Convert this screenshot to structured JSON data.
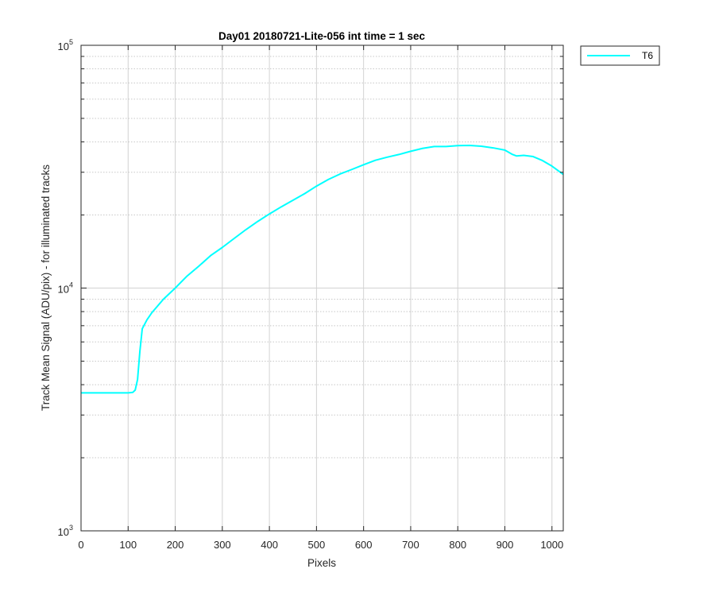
{
  "chart_data": {
    "type": "line",
    "title": "Day01 20180721-Lite-056 int time = 1 sec",
    "xlabel": "Pixels",
    "ylabel": "Track Mean Signal (ADU/pix) - for illuminated tracks",
    "xlim": [
      0,
      1024
    ],
    "ylim": [
      1000,
      100000
    ],
    "yscale": "log",
    "grid": true,
    "minor_grid": true,
    "legend_position": "outside-top-right",
    "x_ticks": [
      "0",
      "100",
      "200",
      "300",
      "400",
      "500",
      "600",
      "700",
      "800",
      "900",
      "1000"
    ],
    "y_ticks": [
      {
        "base": "10",
        "exp": "3"
      },
      {
        "base": "10",
        "exp": "4"
      },
      {
        "base": "10",
        "exp": "5"
      }
    ],
    "series": [
      {
        "name": "T6",
        "color": "#00ffff",
        "x": [
          0,
          50,
          100,
          110,
          115,
          120,
          125,
          130,
          140,
          150,
          175,
          200,
          225,
          250,
          275,
          300,
          325,
          350,
          375,
          400,
          425,
          450,
          475,
          500,
          525,
          550,
          575,
          600,
          625,
          650,
          675,
          700,
          725,
          750,
          775,
          800,
          825,
          850,
          875,
          900,
          915,
          925,
          940,
          960,
          980,
          1000,
          1024
        ],
        "values": [
          3700,
          3700,
          3700,
          3720,
          3800,
          4200,
          5500,
          6800,
          7400,
          7900,
          9000,
          10000,
          11200,
          12300,
          13600,
          14700,
          16000,
          17400,
          18800,
          20200,
          21600,
          23000,
          24500,
          26300,
          28000,
          29500,
          30800,
          32200,
          33600,
          34600,
          35500,
          36600,
          37600,
          38300,
          38300,
          38600,
          38700,
          38400,
          37800,
          37000,
          35600,
          35000,
          35200,
          34800,
          33500,
          31800,
          29400
        ]
      }
    ]
  }
}
